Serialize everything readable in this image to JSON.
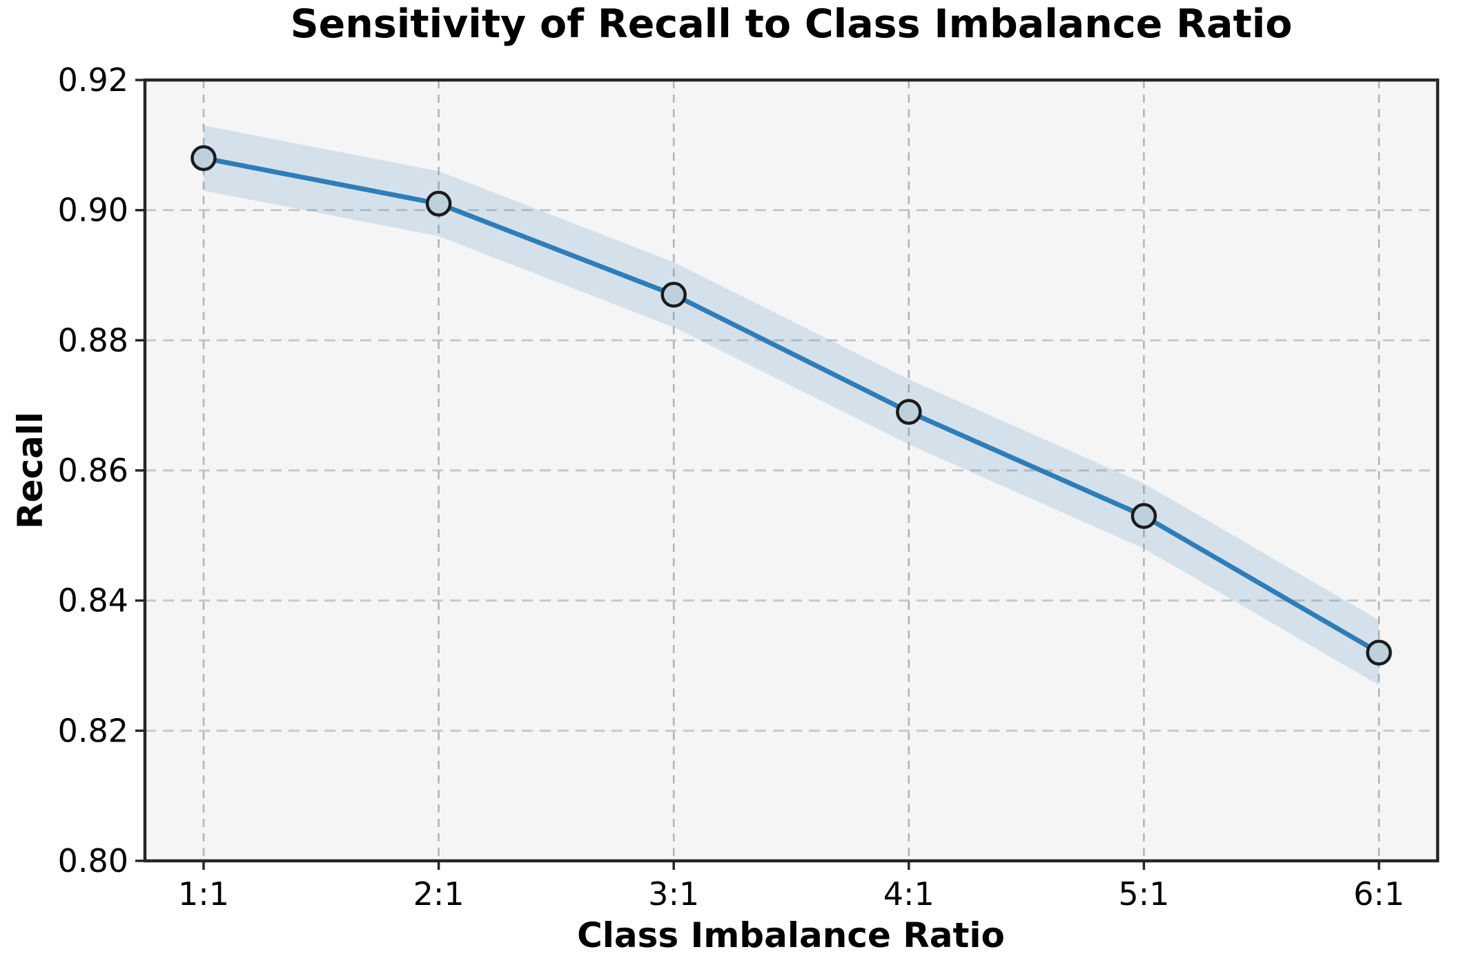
{
  "chart_data": {
    "type": "line",
    "title": "Sensitivity of Recall to Class Imbalance Ratio",
    "xlabel": "Class Imbalance Ratio",
    "ylabel": "Recall",
    "categories": [
      "1:1",
      "2:1",
      "3:1",
      "4:1",
      "5:1",
      "6:1"
    ],
    "series": [
      {
        "name": "Recall",
        "values": [
          0.908,
          0.901,
          0.887,
          0.869,
          0.853,
          0.832
        ]
      }
    ],
    "band_upper": [
      0.913,
      0.906,
      0.892,
      0.874,
      0.858,
      0.837
    ],
    "band_lower": [
      0.903,
      0.896,
      0.882,
      0.864,
      0.848,
      0.827
    ],
    "ylim": [
      0.8,
      0.92
    ],
    "yticks": [
      0.92,
      0.9,
      0.88,
      0.86,
      0.84,
      0.82,
      0.8
    ],
    "ytick_labels": [
      "0.92",
      "0.90",
      "0.88",
      "0.86",
      "0.84",
      "0.82",
      "0.80"
    ],
    "grid": true,
    "legend_position": "none",
    "colors": {
      "line": "#2e7db8",
      "band_fill": "#2e7db8",
      "band_opacity": 0.16,
      "marker_fill": "#bdd0dc",
      "marker_edge": "#1b1b1b",
      "plot_bg": "#f5f5f5",
      "fig_bg": "#ffffff",
      "grid_horizontal": "#c8c8c8",
      "grid_vertical": "#b2b2b2",
      "spine": "#262626",
      "text": "#000000"
    }
  }
}
